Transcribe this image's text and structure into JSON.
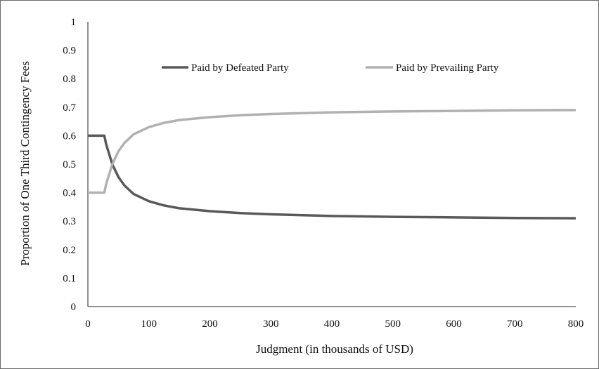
{
  "chart_data": {
    "type": "line",
    "xlabel": "Judgment (in thousands of USD)",
    "ylabel": "Proportion of One Third Contingency Fees",
    "xlim": [
      0,
      800
    ],
    "ylim": [
      0,
      1
    ],
    "x_ticks": [
      0,
      100,
      200,
      300,
      400,
      500,
      600,
      700,
      800
    ],
    "y_ticks": [
      0,
      0.1,
      0.2,
      0.3,
      0.4,
      0.5,
      0.6,
      0.7,
      0.8,
      0.9,
      1
    ],
    "grid": false,
    "legend_position": "top",
    "series": [
      {
        "name": "Paid by Defeated Party",
        "color": "#595959",
        "points": [
          [
            0,
            0.6
          ],
          [
            27,
            0.6
          ],
          [
            30,
            0.57
          ],
          [
            40,
            0.5
          ],
          [
            50,
            0.455
          ],
          [
            60,
            0.425
          ],
          [
            75,
            0.395
          ],
          [
            100,
            0.37
          ],
          [
            125,
            0.355
          ],
          [
            150,
            0.345
          ],
          [
            200,
            0.335
          ],
          [
            250,
            0.328
          ],
          [
            300,
            0.324
          ],
          [
            400,
            0.318
          ],
          [
            500,
            0.315
          ],
          [
            600,
            0.313
          ],
          [
            700,
            0.311
          ],
          [
            800,
            0.31
          ]
        ]
      },
      {
        "name": "Paid by Prevailing Party",
        "color": "#b1b1b1",
        "points": [
          [
            0,
            0.4
          ],
          [
            27,
            0.4
          ],
          [
            30,
            0.43
          ],
          [
            40,
            0.5
          ],
          [
            50,
            0.545
          ],
          [
            60,
            0.575
          ],
          [
            75,
            0.605
          ],
          [
            100,
            0.63
          ],
          [
            125,
            0.645
          ],
          [
            150,
            0.655
          ],
          [
            200,
            0.665
          ],
          [
            250,
            0.672
          ],
          [
            300,
            0.676
          ],
          [
            400,
            0.682
          ],
          [
            500,
            0.685
          ],
          [
            600,
            0.687
          ],
          [
            700,
            0.689
          ],
          [
            800,
            0.69
          ]
        ]
      }
    ]
  }
}
